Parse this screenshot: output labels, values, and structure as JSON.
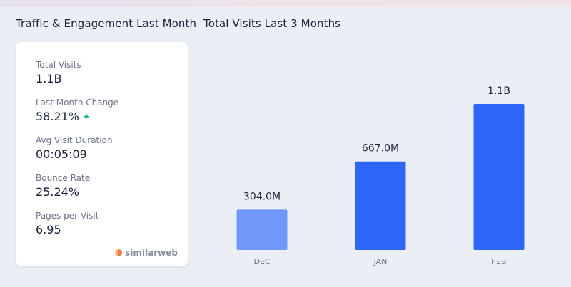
{
  "traffic": {
    "title": "Traffic & Engagement Last Month",
    "metrics": [
      {
        "label": "Total Visits",
        "value": "1.1B"
      },
      {
        "label": "Last Month Change",
        "value": "58.21%",
        "trend": "up"
      },
      {
        "label": "Avg Visit Duration",
        "value": "00:05:09"
      },
      {
        "label": "Bounce Rate",
        "value": "25.24%"
      },
      {
        "label": "Pages per Visit",
        "value": "6.95"
      }
    ],
    "brand": "similarweb"
  },
  "colors": {
    "bar_light": "#6f98fa",
    "bar_strong": "#2f66fa",
    "trend_up": "#2ab57d"
  },
  "chart_data": {
    "type": "bar",
    "title": "Total Visits Last 3 Months",
    "categories": [
      "DEC",
      "JAN",
      "FEB"
    ],
    "values": [
      304.0,
      667.0,
      1100.0
    ],
    "value_unit": "M",
    "data_labels": [
      "304.0M",
      "667.0M",
      "1.1B"
    ],
    "ylim": [
      0,
      1100
    ],
    "grid": false,
    "legend": "none"
  }
}
